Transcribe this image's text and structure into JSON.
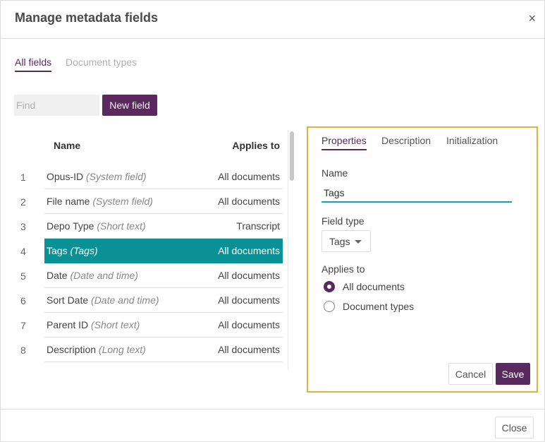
{
  "dialog": {
    "title": "Manage metadata fields",
    "close_glyph": "×"
  },
  "tabs": [
    {
      "label": "All fields",
      "active": true
    },
    {
      "label": "Document types",
      "active": false
    }
  ],
  "toolbar": {
    "find_placeholder": "Find",
    "find_value": "",
    "new_field_label": "New field"
  },
  "table": {
    "headers": {
      "name": "Name",
      "applies_to": "Applies to"
    },
    "rows": [
      {
        "num": "1",
        "name": "Opus-ID",
        "type": "(System field)",
        "applies": "All documents",
        "selected": false
      },
      {
        "num": "2",
        "name": "File name",
        "type": "(System field)",
        "applies": "All documents",
        "selected": false
      },
      {
        "num": "3",
        "name": "Depo Type",
        "type": "(Short text)",
        "applies": "Transcript",
        "selected": false
      },
      {
        "num": "4",
        "name": "Tags",
        "type": "(Tags)",
        "applies": "All documents",
        "selected": true
      },
      {
        "num": "5",
        "name": "Date",
        "type": "(Date and time)",
        "applies": "All documents",
        "selected": false
      },
      {
        "num": "6",
        "name": "Sort Date",
        "type": "(Date and time)",
        "applies": "All documents",
        "selected": false
      },
      {
        "num": "7",
        "name": "Parent ID",
        "type": "(Short text)",
        "applies": "All documents",
        "selected": false
      },
      {
        "num": "8",
        "name": "Description",
        "type": "(Long text)",
        "applies": "All documents",
        "selected": false
      }
    ]
  },
  "panel": {
    "tabs": [
      {
        "label": "Properties",
        "active": true
      },
      {
        "label": "Description",
        "active": false
      },
      {
        "label": "Initialization",
        "active": false
      }
    ],
    "name_label": "Name",
    "name_value": "Tags",
    "field_type_label": "Field type",
    "field_type_value": "Tags",
    "applies_label": "Applies to",
    "applies_options": [
      {
        "label": "All documents",
        "checked": true
      },
      {
        "label": "Document types",
        "checked": false
      }
    ],
    "cancel_label": "Cancel",
    "save_label": "Save"
  },
  "footer": {
    "close_label": "Close"
  },
  "colors": {
    "accent": "#5a2a5e",
    "selection": "#0a9196",
    "panel_border": "#e0b040",
    "input_underline": "#18a1b4"
  }
}
